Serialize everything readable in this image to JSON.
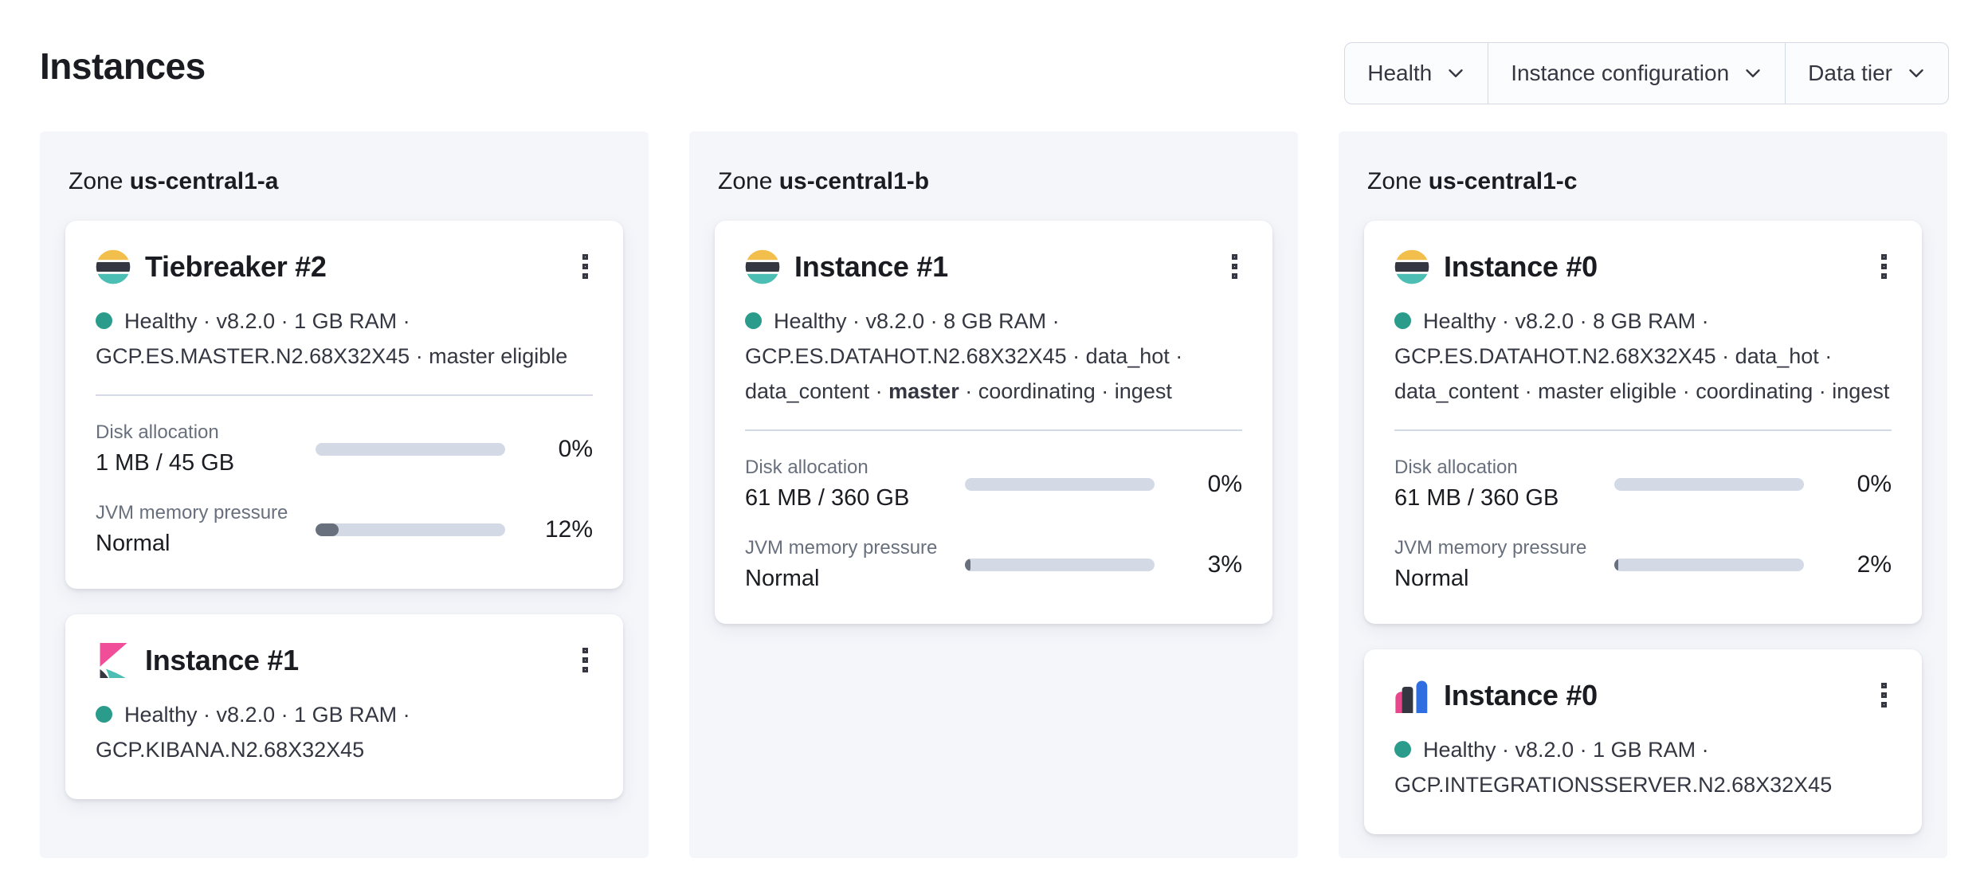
{
  "page": {
    "title": "Instances"
  },
  "filters": [
    {
      "label": "Health"
    },
    {
      "label": "Instance configuration"
    },
    {
      "label": "Data tier"
    }
  ],
  "colors": {
    "health_dot": "#2b9c8c",
    "bar_track": "#d3dae6",
    "bar_fill": "#69707d",
    "panel_bg": "#f5f6fa",
    "es_logo_yellow": "#f2bf4d",
    "es_logo_dark": "#343741",
    "es_logo_teal": "#4dbeb3",
    "kibana_pink": "#f04e98",
    "integrations_blue": "#2e6ee0",
    "integrations_pink": "#e8478b"
  },
  "zones": [
    {
      "label": "Zone",
      "name": "us-central1-a",
      "cards": [
        {
          "logo": "elasticsearch",
          "title": "Tiebreaker #2",
          "health": "Healthy",
          "meta_lines": [
            {
              "segments": [
                {
                  "t": "Healthy · v8.2.0 · 1 GB RAM ·"
                }
              ]
            },
            {
              "segments": [
                {
                  "t": "GCP.ES.MASTER.N2.68X32X45 · master eligible"
                }
              ]
            }
          ],
          "metrics": [
            {
              "label": "Disk allocation",
              "value": "1 MB / 45 GB",
              "percent": "0%"
            },
            {
              "label": "JVM memory pressure",
              "value": "Normal",
              "percent": "12%"
            }
          ]
        },
        {
          "logo": "kibana",
          "title": "Instance #1",
          "health": "Healthy",
          "meta_lines": [
            {
              "segments": [
                {
                  "t": "Healthy · v8.2.0 · 1 GB RAM ·"
                }
              ]
            },
            {
              "segments": [
                {
                  "t": "GCP.KIBANA.N2.68X32X45"
                }
              ]
            }
          ]
        }
      ]
    },
    {
      "label": "Zone",
      "name": "us-central1-b",
      "cards": [
        {
          "logo": "elasticsearch",
          "title": "Instance #1",
          "health": "Healthy",
          "meta_lines": [
            {
              "segments": [
                {
                  "t": "Healthy · v8.2.0 · 8 GB RAM ·"
                }
              ]
            },
            {
              "segments": [
                {
                  "t": "GCP.ES.DATAHOT.N2.68X32X45 · data_hot ·"
                }
              ]
            },
            {
              "segments": [
                {
                  "t": "data_content · "
                },
                {
                  "t": "master",
                  "bold": true
                },
                {
                  "t": " · coordinating · ingest"
                }
              ]
            }
          ],
          "metrics": [
            {
              "label": "Disk allocation",
              "value": "61 MB / 360 GB",
              "percent": "0%"
            },
            {
              "label": "JVM memory pressure",
              "value": "Normal",
              "percent": "3%"
            }
          ]
        }
      ]
    },
    {
      "label": "Zone",
      "name": "us-central1-c",
      "cards": [
        {
          "logo": "elasticsearch",
          "title": "Instance #0",
          "health": "Healthy",
          "meta_lines": [
            {
              "segments": [
                {
                  "t": "Healthy · v8.2.0 · 8 GB RAM ·"
                }
              ]
            },
            {
              "segments": [
                {
                  "t": "GCP.ES.DATAHOT.N2.68X32X45 · data_hot ·"
                }
              ]
            },
            {
              "segments": [
                {
                  "t": "data_content · master eligible · coordinating · ingest"
                }
              ]
            }
          ],
          "metrics": [
            {
              "label": "Disk allocation",
              "value": "61 MB / 360 GB",
              "percent": "0%"
            },
            {
              "label": "JVM memory pressure",
              "value": "Normal",
              "percent": "2%"
            }
          ]
        },
        {
          "logo": "integrations-server",
          "title": "Instance #0",
          "health": "Healthy",
          "meta_lines": [
            {
              "segments": [
                {
                  "t": "Healthy · v8.2.0 · 1 GB RAM ·"
                }
              ]
            },
            {
              "segments": [
                {
                  "t": "GCP.INTEGRATIONSSERVER.N2.68X32X45"
                }
              ]
            }
          ]
        }
      ]
    }
  ]
}
